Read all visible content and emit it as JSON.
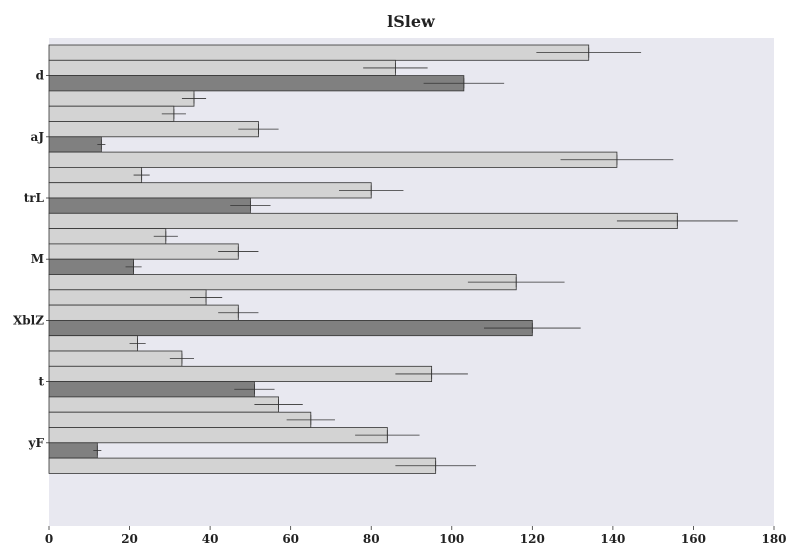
{
  "chart_data": {
    "type": "bar",
    "orientation": "horizontal",
    "title": "lSlew",
    "xlabel": "",
    "ylabel": "",
    "xlim": [
      0,
      180
    ],
    "xticks": [
      0,
      20,
      40,
      60,
      80,
      100,
      120,
      140,
      160,
      180
    ],
    "grid": false,
    "categories": [
      "d",
      "aJ",
      "trL",
      "M",
      "XblZ",
      "t",
      "yF"
    ],
    "series": [
      {
        "values": [
          134,
          31,
          23,
          29,
          39,
          33,
          65
        ],
        "errors": [
          13,
          3,
          2,
          3,
          4,
          3,
          6
        ],
        "color": "#d3d3d3"
      },
      {
        "values": [
          86,
          52,
          80,
          47,
          47,
          95,
          84
        ],
        "errors": [
          8,
          5,
          8,
          5,
          5,
          9,
          8
        ],
        "color": "#d3d3d3"
      },
      {
        "values": [
          103,
          13,
          50,
          21,
          120,
          51,
          12
        ],
        "errors": [
          10,
          1,
          5,
          2,
          12,
          5,
          1
        ],
        "color": "#808080"
      },
      {
        "values": [
          36,
          141,
          156,
          116,
          22,
          57,
          96
        ],
        "errors": [
          3,
          14,
          15,
          12,
          2,
          6,
          10
        ],
        "color": "#d3d3d3"
      }
    ],
    "colors": {
      "plot_background": "#e8e8f0",
      "bar_light": "#d3d3d3",
      "bar_dark": "#808080",
      "edge": "#333333"
    }
  }
}
